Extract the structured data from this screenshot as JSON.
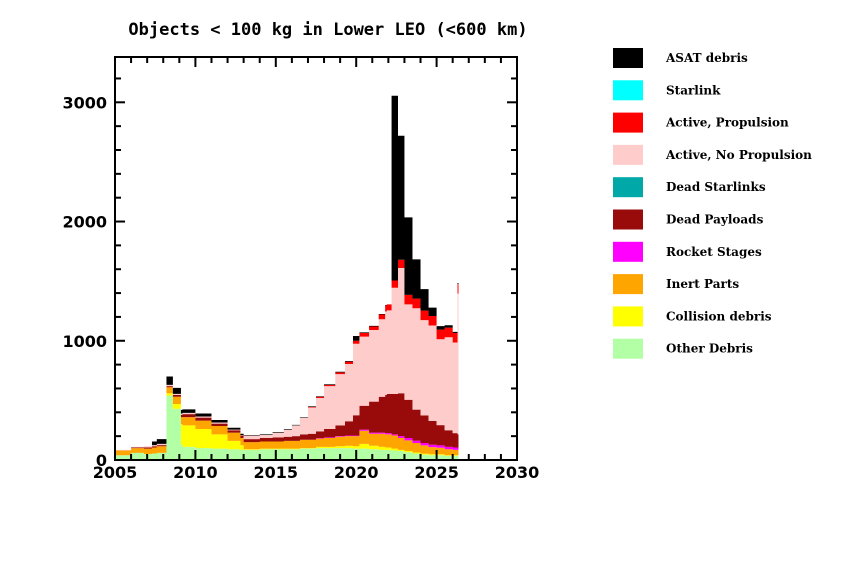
{
  "chart_data": {
    "type": "area",
    "stacked": true,
    "title": "Objects < 100 kg in Lower LEO (<600 km)",
    "xlabel": "",
    "ylabel": "",
    "xlim": [
      2005,
      2030
    ],
    "ylim": [
      0,
      3380
    ],
    "xticks": [
      2005,
      2010,
      2015,
      2020,
      2025,
      2030
    ],
    "xtick_labels": [
      "2005",
      "2010",
      "2015",
      "2020",
      "2025",
      "2030"
    ],
    "yticks": [
      0,
      1000,
      2000,
      3000
    ],
    "ytick_labels": [
      "0",
      "1000",
      "2000",
      "3000"
    ],
    "grid": false,
    "legend_position": "right",
    "x": [
      2005.0,
      2005.9,
      2006.0,
      2006.8,
      2007.3,
      2007.6,
      2008.1,
      2008.2,
      2008.6,
      2009.1,
      2009.2,
      2010.0,
      2011.0,
      2012.0,
      2012.8,
      2013.0,
      2014.0,
      2014.8,
      2015.5,
      2016.0,
      2016.5,
      2017.0,
      2017.5,
      2018.0,
      2018.7,
      2019.3,
      2019.8,
      2020.2,
      2020.8,
      2021.4,
      2021.8,
      2021.9,
      2022.2,
      2022.6,
      2023.0,
      2023.5,
      2024.0,
      2024.5,
      2025.0,
      2025.5,
      2026.0,
      2026.3
    ],
    "series": [
      {
        "name": "Other Debris",
        "color": "#b3ffa6",
        "values": [
          40,
          40,
          60,
          50,
          55,
          60,
          60,
          540,
          430,
          130,
          110,
          100,
          95,
          90,
          85,
          85,
          90,
          90,
          90,
          90,
          95,
          95,
          100,
          100,
          100,
          100,
          95,
          95,
          90,
          85,
          85,
          85,
          80,
          75,
          65,
          55,
          45,
          40,
          40,
          35,
          35,
          35
        ]
      },
      {
        "name": "Collision debris",
        "color": "#ffff00",
        "values": [
          0,
          0,
          0,
          0,
          0,
          0,
          0,
          20,
          40,
          170,
          180,
          160,
          120,
          70,
          40,
          5,
          5,
          5,
          5,
          5,
          5,
          5,
          10,
          10,
          15,
          20,
          20,
          40,
          30,
          25,
          20,
          20,
          15,
          10,
          10,
          8,
          8,
          8,
          8,
          5,
          5,
          5
        ]
      },
      {
        "name": "Inert Parts",
        "color": "#ffa500",
        "values": [
          40,
          40,
          40,
          45,
          50,
          55,
          55,
          50,
          60,
          60,
          70,
          70,
          70,
          70,
          60,
          60,
          60,
          60,
          65,
          65,
          70,
          70,
          70,
          75,
          80,
          80,
          85,
          110,
          100,
          110,
          110,
          110,
          110,
          100,
          90,
          80,
          70,
          60,
          55,
          50,
          45,
          45
        ]
      },
      {
        "name": "Rocket Stages",
        "color": "#ff00ff",
        "values": [
          0,
          0,
          0,
          0,
          0,
          0,
          0,
          0,
          0,
          0,
          0,
          0,
          0,
          0,
          0,
          0,
          0,
          0,
          0,
          0,
          0,
          0,
          5,
          5,
          5,
          5,
          5,
          10,
          10,
          10,
          10,
          10,
          10,
          15,
          20,
          20,
          20,
          20,
          20,
          20,
          20,
          20
        ]
      },
      {
        "name": "Dead Payloads",
        "color": "#990a0a",
        "values": [
          0,
          0,
          5,
          10,
          10,
          10,
          10,
          10,
          15,
          20,
          25,
          25,
          20,
          20,
          20,
          25,
          30,
          35,
          35,
          40,
          45,
          50,
          55,
          70,
          90,
          120,
          170,
          200,
          260,
          300,
          320,
          330,
          340,
          360,
          320,
          260,
          230,
          200,
          170,
          140,
          120,
          110
        ]
      },
      {
        "name": "Dead Starlinks",
        "color": "#00a8a8",
        "values": [
          0,
          0,
          0,
          0,
          0,
          0,
          0,
          0,
          0,
          0,
          0,
          0,
          0,
          0,
          0,
          0,
          0,
          0,
          0,
          0,
          0,
          0,
          0,
          0,
          0,
          0,
          0,
          0,
          0,
          0,
          0,
          0,
          0,
          0,
          0,
          0,
          0,
          0,
          0,
          0,
          0,
          0
        ]
      },
      {
        "name": "Active, No Propulsion",
        "color": "#ffcccc",
        "values": [
          5,
          5,
          5,
          10,
          10,
          10,
          10,
          10,
          10,
          10,
          10,
          10,
          10,
          5,
          5,
          30,
          25,
          40,
          60,
          90,
          140,
          220,
          280,
          360,
          430,
          480,
          600,
          580,
          600,
          650,
          700,
          700,
          890,
          1050,
          800,
          850,
          800,
          800,
          720,
          780,
          760,
          1180
        ]
      },
      {
        "name": "Active, Propulsion",
        "color": "#ff0000",
        "values": [
          0,
          0,
          0,
          0,
          0,
          0,
          0,
          0,
          0,
          0,
          0,
          0,
          0,
          0,
          0,
          0,
          0,
          0,
          0,
          0,
          0,
          5,
          10,
          10,
          15,
          20,
          25,
          30,
          30,
          40,
          50,
          50,
          60,
          70,
          80,
          80,
          80,
          80,
          80,
          80,
          80,
          80
        ]
      },
      {
        "name": "Starlink",
        "color": "#00ffff",
        "values": [
          0,
          0,
          0,
          0,
          0,
          0,
          0,
          0,
          0,
          0,
          0,
          0,
          0,
          0,
          0,
          0,
          0,
          0,
          0,
          0,
          0,
          0,
          0,
          0,
          0,
          0,
          0,
          0,
          0,
          0,
          0,
          0,
          0,
          0,
          0,
          0,
          0,
          0,
          0,
          0,
          0,
          0
        ]
      },
      {
        "name": "ASAT debris",
        "color": "#000000",
        "values": [
          0,
          0,
          0,
          0,
          30,
          40,
          40,
          70,
          50,
          30,
          30,
          25,
          20,
          15,
          10,
          5,
          5,
          5,
          5,
          5,
          5,
          5,
          5,
          5,
          5,
          5,
          40,
          5,
          5,
          5,
          5,
          0,
          1550,
          1040,
          650,
          330,
          180,
          70,
          30,
          20,
          10,
          10
        ]
      }
    ]
  },
  "legend": [
    {
      "label": "ASAT debris",
      "color": "#000000"
    },
    {
      "label": "Starlink",
      "color": "#00ffff"
    },
    {
      "label": "Active, Propulsion",
      "color": "#ff0000"
    },
    {
      "label": "Active, No Propulsion",
      "color": "#ffcccc"
    },
    {
      "label": "Dead Starlinks",
      "color": "#00a8a8"
    },
    {
      "label": "Dead Payloads",
      "color": "#990a0a"
    },
    {
      "label": "Rocket Stages",
      "color": "#ff00ff"
    },
    {
      "label": "Inert Parts",
      "color": "#ffa500"
    },
    {
      "label": "Collision debris",
      "color": "#ffff00"
    },
    {
      "label": "Other Debris",
      "color": "#b3ffa6"
    }
  ]
}
